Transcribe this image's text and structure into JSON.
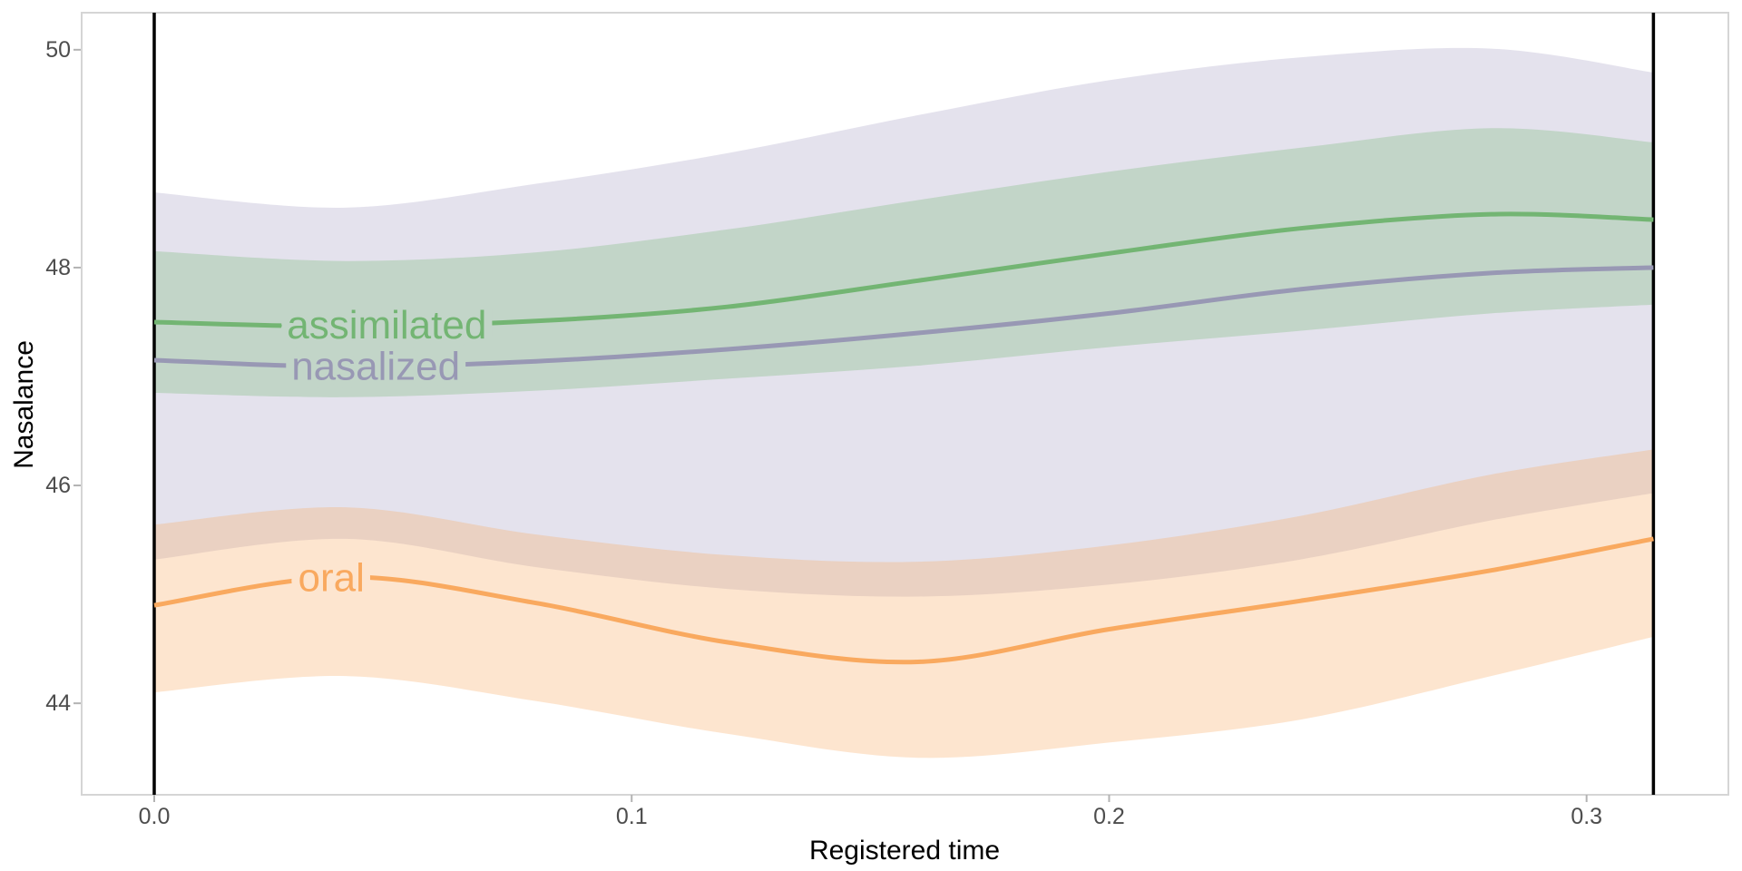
{
  "chart_data": {
    "type": "line",
    "title": "",
    "xlabel": "Registered time",
    "ylabel": "Nasalance",
    "grid": "off",
    "legend": "direct-labels-on-lines",
    "xlim": [
      -0.0152,
      0.3297
    ],
    "ylim": [
      43.16,
      50.34
    ],
    "x_ticks": {
      "values": [
        0.0,
        0.1,
        0.2,
        0.3
      ],
      "labels": [
        "0.0",
        "0.1",
        "0.2",
        "0.3"
      ]
    },
    "y_ticks": {
      "values": [
        44,
        46,
        48,
        50
      ],
      "labels": [
        "44",
        "46",
        "48",
        "50"
      ]
    },
    "reference_lines_x": [
      0.0,
      0.314
    ],
    "x": [
      0.0,
      0.04,
      0.08,
      0.12,
      0.16,
      0.2,
      0.24,
      0.28,
      0.314
    ],
    "series": [
      {
        "name": "nasalized",
        "color": "#9898B4",
        "ribbon_fill": "#9E98BD",
        "ribbon_alpha": 0.28,
        "label": {
          "text": "nasalized",
          "t": 0.0464,
          "v": 47.09,
          "halo": "#C2D5C8"
        },
        "line": [
          47.15,
          47.09,
          47.14,
          47.25,
          47.4,
          47.58,
          47.8,
          47.95,
          48.0
        ],
        "upper": [
          48.69,
          48.55,
          48.77,
          49.05,
          49.4,
          49.72,
          49.93,
          50.01,
          49.79
        ],
        "lower": [
          45.32,
          45.51,
          45.25,
          45.05,
          44.98,
          45.09,
          45.32,
          45.68,
          45.93
        ]
      },
      {
        "name": "assimilated",
        "color": "#73B573",
        "ribbon_fill": "#73B573",
        "ribbon_alpha": 0.3,
        "label": {
          "text": "assimilated",
          "t": 0.0487,
          "v": 47.47,
          "halo": "#C2D5C8"
        },
        "line": [
          47.5,
          47.46,
          47.51,
          47.64,
          47.88,
          48.13,
          48.36,
          48.49,
          48.44
        ],
        "upper": [
          48.15,
          48.06,
          48.14,
          48.35,
          48.62,
          48.88,
          49.1,
          49.28,
          49.15
        ],
        "lower": [
          46.85,
          46.81,
          46.87,
          46.98,
          47.1,
          47.27,
          47.42,
          47.58,
          47.66
        ]
      },
      {
        "name": "oral",
        "color": "#F9A95F",
        "ribbon_fill": "#F9A95F",
        "ribbon_alpha": 0.3,
        "label": {
          "text": "oral",
          "t": 0.0371,
          "v": 45.15,
          "halo": "#FDE5CF"
        },
        "line": [
          44.9,
          45.16,
          44.92,
          44.56,
          44.38,
          44.68,
          44.94,
          45.22,
          45.51
        ],
        "upper": [
          45.64,
          45.8,
          45.55,
          45.36,
          45.3,
          45.45,
          45.72,
          46.1,
          46.33
        ],
        "lower": [
          44.1,
          44.25,
          44.02,
          43.72,
          43.5,
          43.64,
          43.85,
          44.25,
          44.61
        ]
      }
    ],
    "colors": {
      "panel_border": "#D5D5D5",
      "tick_mark": "#B3B3B3",
      "tick_label": "#4D4D4D",
      "axis_title": "#000000",
      "reference_line": "#000000",
      "background": "#FFFFFF"
    }
  }
}
